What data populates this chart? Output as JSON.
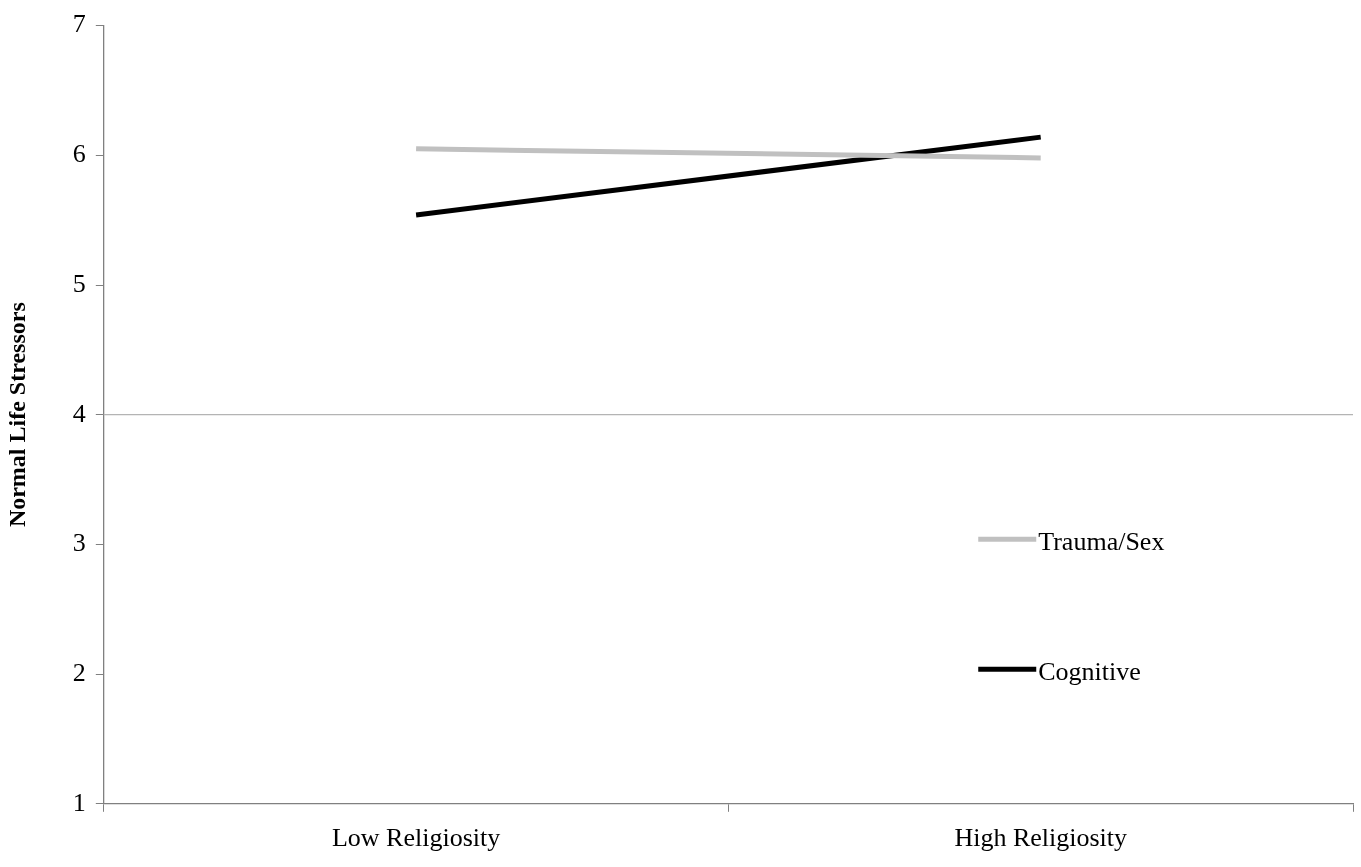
{
  "chart_data": {
    "type": "line",
    "ylabel": "Normal Life Stressors",
    "categories": [
      "Low Religiosity",
      "High Religiosity"
    ],
    "series": [
      {
        "name": "Trauma/Sex",
        "color": "#c0c0c0",
        "values": [
          6.05,
          5.98
        ]
      },
      {
        "name": "Cognitive",
        "color": "#000000",
        "values": [
          5.54,
          6.14
        ]
      }
    ],
    "ylim": [
      1,
      7
    ],
    "yticks": [
      1,
      2,
      3,
      4,
      5,
      6,
      7
    ],
    "ref_lines": [
      {
        "axis": "y",
        "value": 4,
        "color": "#b4b4b4"
      }
    ],
    "grid": false,
    "legend": "right",
    "marker": "none",
    "line_style": "solid"
  }
}
